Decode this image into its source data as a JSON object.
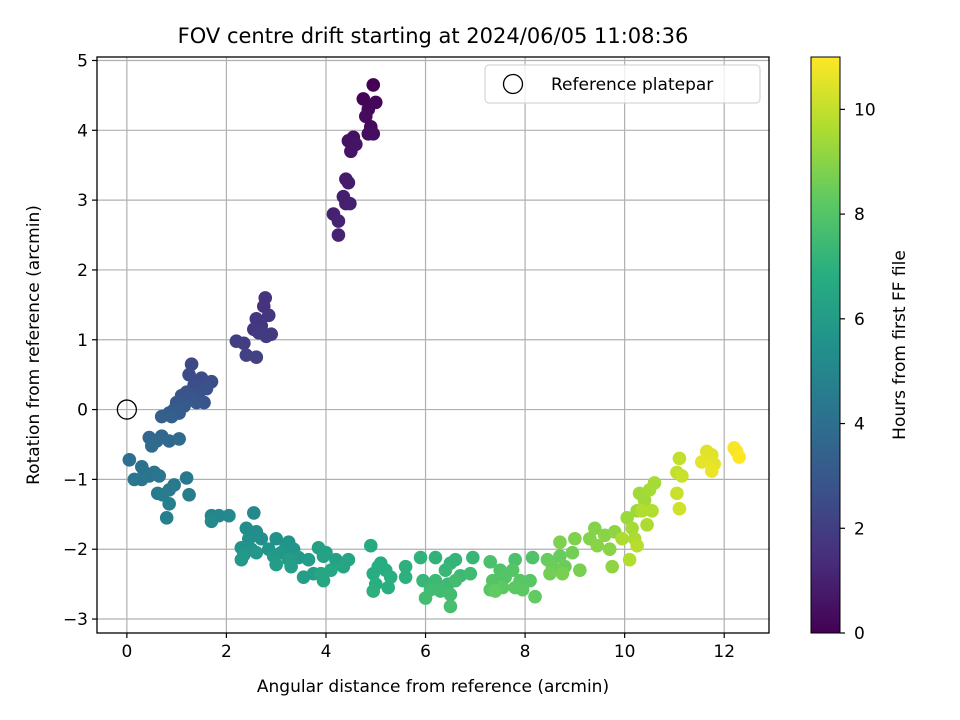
{
  "chart_data": {
    "type": "scatter",
    "title": "FOV centre drift starting at 2024/06/05 11:08:36",
    "xlabel": "Angular distance from reference (arcmin)",
    "ylabel": "Rotation from reference (arcmin)",
    "xlim": [
      -0.6,
      12.9
    ],
    "ylim": [
      -3.2,
      5.05
    ],
    "xticks": [
      0,
      2,
      4,
      6,
      8,
      10,
      12
    ],
    "yticks": [
      -3,
      -2,
      -1,
      0,
      1,
      2,
      3,
      4,
      5
    ],
    "grid": true,
    "legend": {
      "placement": "top-right",
      "entries": [
        "Reference platepar"
      ]
    },
    "reference_point": {
      "x": 0,
      "y": 0
    },
    "colorbar": {
      "label": "Hours from first FF file",
      "range": [
        0,
        11
      ],
      "ticks": [
        0,
        2,
        4,
        6,
        8,
        10
      ],
      "colormap": "viridis"
    },
    "points": [
      {
        "x": 4.95,
        "y": 4.65,
        "h": 0.0
      },
      {
        "x": 4.75,
        "y": 4.45,
        "h": 0.1
      },
      {
        "x": 4.85,
        "y": 4.3,
        "h": 0.2
      },
      {
        "x": 5.0,
        "y": 4.4,
        "h": 0.2
      },
      {
        "x": 4.8,
        "y": 4.2,
        "h": 0.3
      },
      {
        "x": 4.9,
        "y": 4.05,
        "h": 0.3
      },
      {
        "x": 4.85,
        "y": 3.95,
        "h": 0.4
      },
      {
        "x": 4.95,
        "y": 3.95,
        "h": 0.4
      },
      {
        "x": 4.55,
        "y": 3.9,
        "h": 0.5
      },
      {
        "x": 4.45,
        "y": 3.85,
        "h": 0.5
      },
      {
        "x": 4.6,
        "y": 3.8,
        "h": 0.6
      },
      {
        "x": 4.5,
        "y": 3.7,
        "h": 0.6
      },
      {
        "x": 4.4,
        "y": 3.3,
        "h": 0.8
      },
      {
        "x": 4.45,
        "y": 3.25,
        "h": 0.8
      },
      {
        "x": 4.35,
        "y": 3.05,
        "h": 0.9
      },
      {
        "x": 4.4,
        "y": 2.95,
        "h": 0.9
      },
      {
        "x": 4.48,
        "y": 2.95,
        "h": 1.0
      },
      {
        "x": 4.15,
        "y": 2.8,
        "h": 1.0
      },
      {
        "x": 4.25,
        "y": 2.7,
        "h": 1.1
      },
      {
        "x": 4.25,
        "y": 2.5,
        "h": 1.1
      },
      {
        "x": 2.78,
        "y": 1.6,
        "h": 1.6
      },
      {
        "x": 2.75,
        "y": 1.48,
        "h": 1.6
      },
      {
        "x": 2.85,
        "y": 1.35,
        "h": 1.7
      },
      {
        "x": 2.6,
        "y": 1.3,
        "h": 1.7
      },
      {
        "x": 2.7,
        "y": 1.2,
        "h": 1.8
      },
      {
        "x": 2.55,
        "y": 1.15,
        "h": 1.8
      },
      {
        "x": 2.65,
        "y": 1.1,
        "h": 1.9
      },
      {
        "x": 2.9,
        "y": 1.08,
        "h": 1.9
      },
      {
        "x": 2.8,
        "y": 1.05,
        "h": 1.9
      },
      {
        "x": 2.2,
        "y": 0.98,
        "h": 2.0
      },
      {
        "x": 2.35,
        "y": 0.95,
        "h": 2.0
      },
      {
        "x": 2.4,
        "y": 0.78,
        "h": 2.1
      },
      {
        "x": 2.6,
        "y": 0.75,
        "h": 2.1
      },
      {
        "x": 1.3,
        "y": 0.65,
        "h": 2.4
      },
      {
        "x": 1.25,
        "y": 0.5,
        "h": 2.5
      },
      {
        "x": 1.5,
        "y": 0.45,
        "h": 2.5
      },
      {
        "x": 1.7,
        "y": 0.4,
        "h": 2.6
      },
      {
        "x": 1.35,
        "y": 0.35,
        "h": 2.6
      },
      {
        "x": 1.6,
        "y": 0.3,
        "h": 2.7
      },
      {
        "x": 1.45,
        "y": 0.25,
        "h": 2.7
      },
      {
        "x": 1.2,
        "y": 0.25,
        "h": 2.8
      },
      {
        "x": 1.1,
        "y": 0.2,
        "h": 2.8
      },
      {
        "x": 1.3,
        "y": 0.15,
        "h": 2.9
      },
      {
        "x": 1.55,
        "y": 0.1,
        "h": 2.9
      },
      {
        "x": 1.4,
        "y": 0.1,
        "h": 3.0
      },
      {
        "x": 1.0,
        "y": 0.1,
        "h": 3.0
      },
      {
        "x": 1.15,
        "y": 0.05,
        "h": 3.1
      },
      {
        "x": 0.95,
        "y": 0.0,
        "h": 3.1
      },
      {
        "x": 1.05,
        "y": -0.05,
        "h": 3.2
      },
      {
        "x": 0.85,
        "y": -0.05,
        "h": 3.2
      },
      {
        "x": 0.7,
        "y": -0.1,
        "h": 3.3
      },
      {
        "x": 0.9,
        "y": -0.1,
        "h": 3.3
      },
      {
        "x": 0.45,
        "y": -0.4,
        "h": 3.6
      },
      {
        "x": 0.7,
        "y": -0.38,
        "h": 3.6
      },
      {
        "x": 0.6,
        "y": -0.45,
        "h": 3.7
      },
      {
        "x": 0.85,
        "y": -0.45,
        "h": 3.7
      },
      {
        "x": 1.05,
        "y": -0.42,
        "h": 3.8
      },
      {
        "x": 0.5,
        "y": -0.52,
        "h": 3.8
      },
      {
        "x": 0.05,
        "y": -0.72,
        "h": 4.0
      },
      {
        "x": 0.3,
        "y": -0.82,
        "h": 4.1
      },
      {
        "x": 0.35,
        "y": -0.9,
        "h": 4.1
      },
      {
        "x": 0.55,
        "y": -0.9,
        "h": 4.2
      },
      {
        "x": 0.45,
        "y": -0.95,
        "h": 4.2
      },
      {
        "x": 0.65,
        "y": -0.95,
        "h": 4.3
      },
      {
        "x": 0.15,
        "y": -1.0,
        "h": 4.3
      },
      {
        "x": 0.3,
        "y": -1.0,
        "h": 4.3
      },
      {
        "x": 1.2,
        "y": -0.98,
        "h": 4.4
      },
      {
        "x": 0.95,
        "y": -1.08,
        "h": 4.4
      },
      {
        "x": 0.85,
        "y": -1.15,
        "h": 4.5
      },
      {
        "x": 0.62,
        "y": -1.2,
        "h": 4.5
      },
      {
        "x": 1.25,
        "y": -1.22,
        "h": 4.6
      },
      {
        "x": 0.72,
        "y": -1.22,
        "h": 4.6
      },
      {
        "x": 0.85,
        "y": -1.35,
        "h": 4.7
      },
      {
        "x": 0.8,
        "y": -1.55,
        "h": 4.7
      },
      {
        "x": 1.7,
        "y": -1.52,
        "h": 5.0
      },
      {
        "x": 1.85,
        "y": -1.52,
        "h": 5.0
      },
      {
        "x": 2.05,
        "y": -1.52,
        "h": 5.1
      },
      {
        "x": 2.55,
        "y": -1.48,
        "h": 5.1
      },
      {
        "x": 1.7,
        "y": -1.6,
        "h": 5.2
      },
      {
        "x": 2.4,
        "y": -1.7,
        "h": 5.3
      },
      {
        "x": 2.6,
        "y": -1.75,
        "h": 5.3
      },
      {
        "x": 2.45,
        "y": -1.85,
        "h": 5.4
      },
      {
        "x": 2.7,
        "y": -1.85,
        "h": 5.4
      },
      {
        "x": 3.0,
        "y": -1.85,
        "h": 5.5
      },
      {
        "x": 3.25,
        "y": -1.9,
        "h": 5.5
      },
      {
        "x": 2.3,
        "y": -1.98,
        "h": 5.6
      },
      {
        "x": 2.5,
        "y": -2.0,
        "h": 5.6
      },
      {
        "x": 2.85,
        "y": -2.0,
        "h": 5.7
      },
      {
        "x": 3.2,
        "y": -1.95,
        "h": 5.7
      },
      {
        "x": 3.35,
        "y": -2.0,
        "h": 5.7
      },
      {
        "x": 2.35,
        "y": -2.08,
        "h": 5.8
      },
      {
        "x": 2.6,
        "y": -2.05,
        "h": 5.8
      },
      {
        "x": 3.1,
        "y": -2.05,
        "h": 5.8
      },
      {
        "x": 2.95,
        "y": -2.1,
        "h": 5.9
      },
      {
        "x": 3.45,
        "y": -2.12,
        "h": 5.9
      },
      {
        "x": 2.3,
        "y": -2.15,
        "h": 5.9
      },
      {
        "x": 3.25,
        "y": -2.15,
        "h": 6.0
      },
      {
        "x": 3.65,
        "y": -2.15,
        "h": 6.0
      },
      {
        "x": 3.0,
        "y": -2.22,
        "h": 6.0
      },
      {
        "x": 3.3,
        "y": -2.25,
        "h": 6.1
      },
      {
        "x": 3.55,
        "y": -2.4,
        "h": 6.1
      },
      {
        "x": 3.75,
        "y": -2.35,
        "h": 6.1
      },
      {
        "x": 3.85,
        "y": -1.98,
        "h": 6.2
      },
      {
        "x": 4.0,
        "y": -2.05,
        "h": 6.2
      },
      {
        "x": 3.95,
        "y": -2.1,
        "h": 6.3
      },
      {
        "x": 4.2,
        "y": -2.15,
        "h": 6.3
      },
      {
        "x": 4.45,
        "y": -2.15,
        "h": 6.4
      },
      {
        "x": 4.35,
        "y": -2.25,
        "h": 6.4
      },
      {
        "x": 4.1,
        "y": -2.3,
        "h": 6.5
      },
      {
        "x": 3.9,
        "y": -2.35,
        "h": 6.5
      },
      {
        "x": 3.95,
        "y": -2.45,
        "h": 6.5
      },
      {
        "x": 4.9,
        "y": -1.95,
        "h": 6.7
      },
      {
        "x": 5.1,
        "y": -2.2,
        "h": 6.7
      },
      {
        "x": 5.05,
        "y": -2.25,
        "h": 6.8
      },
      {
        "x": 4.95,
        "y": -2.35,
        "h": 6.8
      },
      {
        "x": 5.2,
        "y": -2.3,
        "h": 6.8
      },
      {
        "x": 5.3,
        "y": -2.4,
        "h": 6.9
      },
      {
        "x": 5.0,
        "y": -2.5,
        "h": 6.9
      },
      {
        "x": 5.25,
        "y": -2.55,
        "h": 6.9
      },
      {
        "x": 4.95,
        "y": -2.6,
        "h": 7.0
      },
      {
        "x": 5.6,
        "y": -2.25,
        "h": 7.0
      },
      {
        "x": 5.6,
        "y": -2.4,
        "h": 7.0
      },
      {
        "x": 5.9,
        "y": -2.12,
        "h": 7.1
      },
      {
        "x": 6.2,
        "y": -2.12,
        "h": 7.1
      },
      {
        "x": 6.5,
        "y": -2.2,
        "h": 7.2
      },
      {
        "x": 6.6,
        "y": -2.15,
        "h": 7.2
      },
      {
        "x": 6.95,
        "y": -2.12,
        "h": 7.3
      },
      {
        "x": 6.4,
        "y": -2.3,
        "h": 7.3
      },
      {
        "x": 5.95,
        "y": -2.45,
        "h": 7.3
      },
      {
        "x": 6.2,
        "y": -2.45,
        "h": 7.4
      },
      {
        "x": 6.45,
        "y": -2.5,
        "h": 7.4
      },
      {
        "x": 6.7,
        "y": -2.38,
        "h": 7.4
      },
      {
        "x": 6.9,
        "y": -2.35,
        "h": 7.5
      },
      {
        "x": 6.1,
        "y": -2.58,
        "h": 7.5
      },
      {
        "x": 6.3,
        "y": -2.6,
        "h": 7.5
      },
      {
        "x": 6.6,
        "y": -2.45,
        "h": 7.6
      },
      {
        "x": 6.0,
        "y": -2.7,
        "h": 7.6
      },
      {
        "x": 6.5,
        "y": -2.65,
        "h": 7.6
      },
      {
        "x": 6.5,
        "y": -2.82,
        "h": 7.7
      },
      {
        "x": 7.3,
        "y": -2.18,
        "h": 7.8
      },
      {
        "x": 7.8,
        "y": -2.15,
        "h": 7.8
      },
      {
        "x": 8.15,
        "y": -2.12,
        "h": 7.9
      },
      {
        "x": 7.5,
        "y": -2.3,
        "h": 7.9
      },
      {
        "x": 7.75,
        "y": -2.3,
        "h": 8.0
      },
      {
        "x": 7.35,
        "y": -2.45,
        "h": 8.0
      },
      {
        "x": 7.6,
        "y": -2.4,
        "h": 8.0
      },
      {
        "x": 7.9,
        "y": -2.45,
        "h": 8.1
      },
      {
        "x": 8.1,
        "y": -2.45,
        "h": 8.1
      },
      {
        "x": 7.3,
        "y": -2.58,
        "h": 8.1
      },
      {
        "x": 7.55,
        "y": -2.55,
        "h": 8.2
      },
      {
        "x": 7.8,
        "y": -2.55,
        "h": 8.2
      },
      {
        "x": 7.95,
        "y": -2.58,
        "h": 8.2
      },
      {
        "x": 7.4,
        "y": -2.6,
        "h": 8.3
      },
      {
        "x": 8.2,
        "y": -2.68,
        "h": 8.3
      },
      {
        "x": 8.45,
        "y": -2.15,
        "h": 8.4
      },
      {
        "x": 8.7,
        "y": -2.1,
        "h": 8.4
      },
      {
        "x": 8.55,
        "y": -2.25,
        "h": 8.5
      },
      {
        "x": 8.8,
        "y": -2.25,
        "h": 8.5
      },
      {
        "x": 8.95,
        "y": -2.05,
        "h": 8.6
      },
      {
        "x": 8.5,
        "y": -2.35,
        "h": 8.6
      },
      {
        "x": 8.75,
        "y": -2.35,
        "h": 8.7
      },
      {
        "x": 9.1,
        "y": -2.3,
        "h": 8.7
      },
      {
        "x": 8.7,
        "y": -1.9,
        "h": 8.8
      },
      {
        "x": 9.0,
        "y": -1.85,
        "h": 8.8
      },
      {
        "x": 9.3,
        "y": -1.85,
        "h": 8.9
      },
      {
        "x": 9.4,
        "y": -1.7,
        "h": 8.9
      },
      {
        "x": 9.6,
        "y": -1.8,
        "h": 9.0
      },
      {
        "x": 9.45,
        "y": -1.95,
        "h": 9.0
      },
      {
        "x": 9.7,
        "y": -2.0,
        "h": 9.0
      },
      {
        "x": 9.75,
        "y": -2.25,
        "h": 9.1
      },
      {
        "x": 9.8,
        "y": -1.75,
        "h": 9.1
      },
      {
        "x": 10.05,
        "y": -1.55,
        "h": 9.3
      },
      {
        "x": 10.25,
        "y": -1.45,
        "h": 9.3
      },
      {
        "x": 10.4,
        "y": -1.3,
        "h": 9.4
      },
      {
        "x": 10.3,
        "y": -1.2,
        "h": 9.4
      },
      {
        "x": 10.5,
        "y": -1.15,
        "h": 9.5
      },
      {
        "x": 10.6,
        "y": -1.05,
        "h": 9.5
      },
      {
        "x": 10.15,
        "y": -1.7,
        "h": 9.5
      },
      {
        "x": 9.95,
        "y": -1.85,
        "h": 9.6
      },
      {
        "x": 10.2,
        "y": -1.85,
        "h": 9.6
      },
      {
        "x": 10.45,
        "y": -1.65,
        "h": 9.6
      },
      {
        "x": 10.35,
        "y": -1.45,
        "h": 9.7
      },
      {
        "x": 10.55,
        "y": -1.45,
        "h": 9.7
      },
      {
        "x": 10.1,
        "y": -2.15,
        "h": 9.7
      },
      {
        "x": 10.25,
        "y": -1.95,
        "h": 9.8
      },
      {
        "x": 11.1,
        "y": -0.7,
        "h": 10.0
      },
      {
        "x": 11.05,
        "y": -0.9,
        "h": 10.0
      },
      {
        "x": 11.15,
        "y": -0.95,
        "h": 10.1
      },
      {
        "x": 11.05,
        "y": -1.2,
        "h": 10.1
      },
      {
        "x": 11.1,
        "y": -1.42,
        "h": 10.2
      },
      {
        "x": 11.65,
        "y": -0.6,
        "h": 10.5
      },
      {
        "x": 11.75,
        "y": -0.65,
        "h": 10.5
      },
      {
        "x": 11.55,
        "y": -0.75,
        "h": 10.6
      },
      {
        "x": 11.8,
        "y": -0.78,
        "h": 10.6
      },
      {
        "x": 11.75,
        "y": -0.88,
        "h": 10.7
      },
      {
        "x": 12.2,
        "y": -0.55,
        "h": 10.9
      },
      {
        "x": 12.25,
        "y": -0.6,
        "h": 10.9
      },
      {
        "x": 12.3,
        "y": -0.68,
        "h": 11.0
      }
    ]
  }
}
